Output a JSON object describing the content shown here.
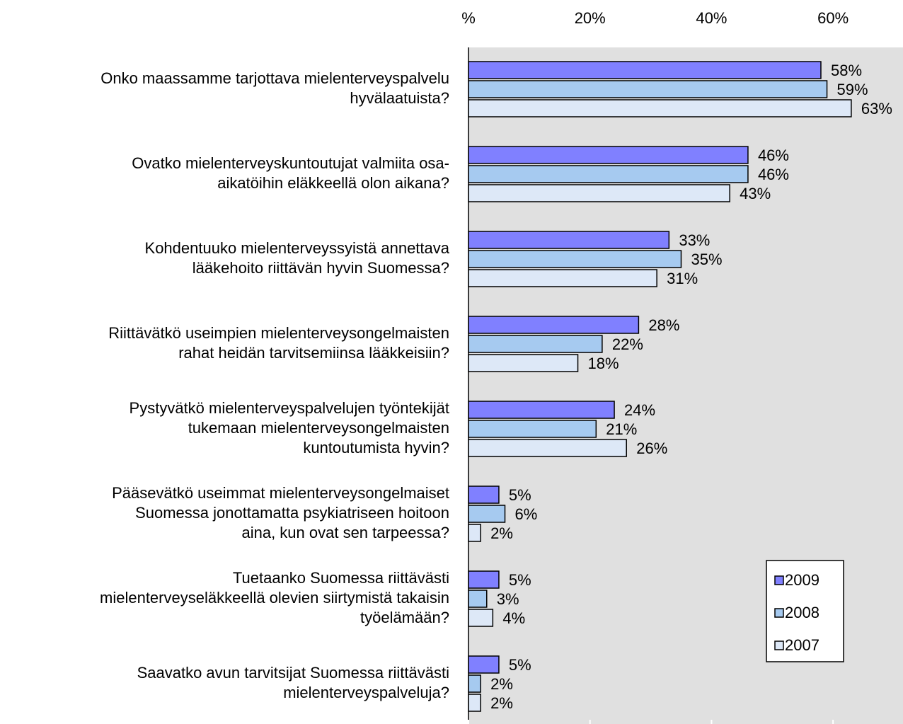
{
  "chart_data": {
    "type": "hbar",
    "categories": [
      "Onko maassamme  tarjottava mielenterveyspalvelu\nhyvälaatuista?",
      "Ovatko mielenterveyskuntoutujat valmiita osa-\naikatöihin eläkkeellä olon aikana?",
      "Kohdentuuko mielenterveyssyistä annettava\nlääkehoito riittävän hyvin Suomessa?",
      "Riittävätkö useimpien mielenterveysongelmaisten\nrahat heidän tarvitsemiinsa lääkkeisiin?",
      "Pystyvätkö mielenterveyspalvelujen työntekijät\ntukemaan mielenterveysongelmaisten\nkuntoutumista hyvin?",
      "Pääsevätkö useimmat mielenterveysongelmaiset\nSuomessa jonottamatta psykiatriseen hoitoon\naina, kun ovat sen tarpeessa?",
      "Tuetaanko Suomessa riittävästi\nmielenterveyseläkkeellä olevien siirtymistä takaisin\ntyöelämään?",
      "Saavatko avun tarvitsijat Suomessa riittävästi\nmielenterveyspalveluja?"
    ],
    "series": [
      {
        "name": "2009",
        "color": "#8080ff",
        "values": [
          58,
          46,
          33,
          28,
          24,
          5,
          5,
          5
        ],
        "value_labels": [
          "58%",
          "46%",
          "33%",
          "28%",
          "24%",
          "5%",
          "5%",
          "5%"
        ]
      },
      {
        "name": "2008",
        "color": "#a6caf0",
        "values": [
          59,
          46,
          35,
          22,
          21,
          6,
          3,
          2
        ],
        "value_labels": [
          "59%",
          "46%",
          "35%",
          "22%",
          "21%",
          "6%",
          "3%",
          "2%"
        ]
      },
      {
        "name": "2007",
        "color": "#dde8f7",
        "values": [
          63,
          43,
          31,
          18,
          26,
          2,
          4,
          2
        ],
        "value_labels": [
          "63%",
          "43%",
          "31%",
          "18%",
          "26%",
          "2%",
          "4%",
          "2%"
        ]
      }
    ],
    "xlim": [
      0,
      70
    ],
    "xticks": [
      {
        "value": 0,
        "label": "%"
      },
      {
        "value": 20,
        "label": "20%"
      },
      {
        "value": 40,
        "label": "40%"
      },
      {
        "value": 60,
        "label": "60%"
      }
    ],
    "legend": "lower right"
  }
}
